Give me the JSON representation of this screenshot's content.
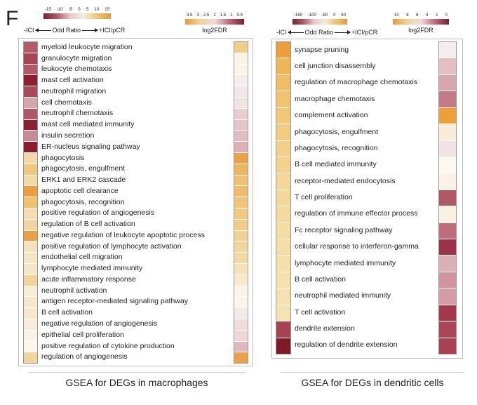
{
  "panel_letter": "F",
  "chart_data": [
    {
      "type": "heatmap",
      "caption": "GSEA for DEGs in macrophages",
      "or_legend": {
        "ticks": [
          "-15",
          "-10",
          "-5",
          "0",
          "5",
          "10",
          "15"
        ],
        "left": "-ICI",
        "center": "Odd Ratio",
        "right": "+ICI/pCR"
      },
      "fdr_legend": {
        "ticks": [
          "3.5",
          "3",
          "2.5",
          "2",
          "1.5",
          "1",
          "0.5"
        ],
        "title": "log2FDR"
      },
      "terms": [
        "myeloid leukocyte migration",
        "granulocyte migration",
        "leukocyte chemotaxis",
        "mast cell activation",
        "neutrophil migration",
        "cell chemotaxis",
        "neutrophil chemotaxis",
        "mast cell mediated immunity",
        "insulin secretion",
        "ER-nucleus signaling pathway",
        "phagocytosis",
        "phagocytosis, engulfment",
        "ERK1 and ERK2 cascade",
        "apoptotic cell clearance",
        "phagocytosis, recognition",
        "positive regulation of angiogenesis",
        "regulation of B cell activation",
        "negative regulation of leukocyte apoptotic process",
        "positive regulation of lymphocyte activation",
        "endothelial cell migration",
        "lymphocyte mediated immunity",
        "acute inflammatory response",
        "neutrophil activation",
        "antigen receptor-mediated signaling pathway",
        "B cell activation",
        "negative regulation of angiogenesis",
        "epithelial cell proliferation",
        "positive regulation of cytokine production",
        "regulation of angiogenesis"
      ],
      "odds_ratio_colors": [
        "#b45a68",
        "#a84454",
        "#b35866",
        "#8e1e2e",
        "#a84a58",
        "#d8a4ac",
        "#b05666",
        "#8c1f30",
        "#c88a96",
        "#8c1c2c",
        "#f3d9a6",
        "#f0c77c",
        "#f2d9a8",
        "#ea9e3c",
        "#efc270",
        "#f4dcae",
        "#f2d6a2",
        "#eaa043",
        "#f5e2bb",
        "#f6e5c3",
        "#f6e6c6",
        "#f3d39a",
        "#f8ecd5",
        "#f7e8cb",
        "#f7e8ca",
        "#f8edd7",
        "#faf2e3",
        "#fbf6ec",
        "#f3d49b"
      ],
      "fdr_colors": [
        "#f1cd8a",
        "#fbf4e6",
        "#fbf4e6",
        "#f5ecec",
        "#f2e6e6",
        "#f2e4e4",
        "#e8ccd0",
        "#e6c4ca",
        "#e2bcc2",
        "#dcb0b8",
        "#eba148",
        "#edb65e",
        "#efc072",
        "#eebc6a",
        "#f0c47a",
        "#f1c880",
        "#f2cd8a",
        "#f2d092",
        "#f3d49b",
        "#f4d8a4",
        "#f6e1b8",
        "#f8e9cc",
        "#fbf3e5",
        "#fbf4e8",
        "#f5e8e8",
        "#f0dcdc",
        "#eed6d8",
        "#e2b8bf",
        "#eba148"
      ]
    },
    {
      "type": "heatmap",
      "caption": "GSEA for DEGs in dendritic cells",
      "or_legend": {
        "ticks": [
          "-150",
          "-100",
          "-50",
          "0",
          "50"
        ],
        "left": "-ICI",
        "center": "Odd Ratio",
        "right": "+ICI/pCR"
      },
      "fdr_legend": {
        "ticks": [
          "10",
          "8",
          "6",
          "4",
          "2",
          "0"
        ],
        "title": "log2FDR"
      },
      "terms": [
        "synapse pruning",
        "cell junction disassembly",
        "regulation of macrophage chemotaxis",
        "macrophage chemotaxis",
        "complement activation",
        "phagocytosis, engulfment",
        "phagocytosis, recognition",
        "B cell mediated immunity",
        "receptor-mediated endocytosis",
        "T cell proliferation",
        "regulation of immune effector process",
        "Fc receptor signaling pathway",
        "cellular response to interferon-gamma",
        "lymphocyte mediated immunity",
        "B cell activation",
        "neutrophil mediated immunity",
        "T cell activation",
        "dendrite extension",
        "regulation of dendrite extension"
      ],
      "odds_ratio_colors": [
        "#ec9e3a",
        "#efb656",
        "#f0bd64",
        "#f1c36f",
        "#f2c878",
        "#f2cc80",
        "#f3d088",
        "#f3d28c",
        "#f4d696",
        "#f4d898",
        "#f5da9e",
        "#f5dca2",
        "#f5dea6",
        "#f6e0aa",
        "#f6e2ae",
        "#f6e2b0",
        "#f6e3b2",
        "#a84252",
        "#7e1a26"
      ],
      "fdr_colors": [
        "#f5eded",
        "#e3bec4",
        "#d8a6ae",
        "#c47a86",
        "#eea038",
        "#f8edd4",
        "#f0e2e4",
        "#fcf8f0",
        "#faf2e6",
        "#b05866",
        "#faf2e0",
        "#c06c7a",
        "#9c3346",
        "#dcb0b8",
        "#cf949e",
        "#d49ca6",
        "#a23848",
        "#ac4656",
        "#a84252"
      ]
    }
  ]
}
